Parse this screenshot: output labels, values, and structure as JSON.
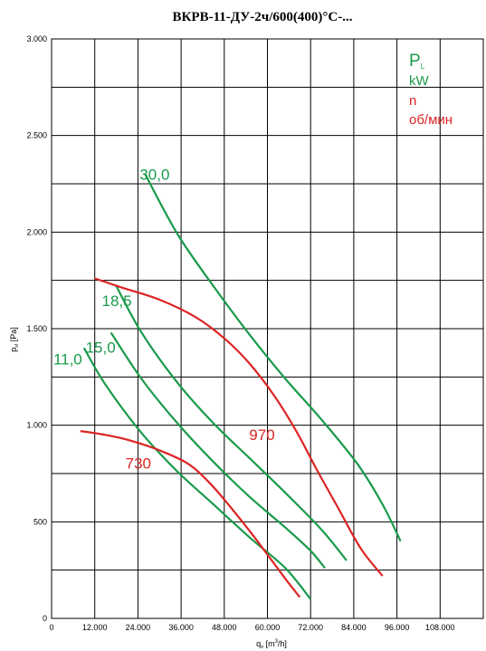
{
  "chart_data": {
    "type": "line",
    "title": "ВКРВ-11-ДУ-2ч/600(400)°С-...",
    "xlabel": "q",
    "xlabel_sub": "v",
    "xlabel_unit": " [m",
    "xlabel_unit_sup": "3",
    "xlabel_unit_end": "/h]",
    "ylabel": "p",
    "ylabel_sub": "sf",
    "ylabel_unit": " [Pa]",
    "xlim": [
      0,
      120000
    ],
    "ylim": [
      0,
      3000
    ],
    "x_ticks": [
      0,
      12000,
      24000,
      36000,
      48000,
      60000,
      72000,
      84000,
      96000,
      108000
    ],
    "x_tick_labels": [
      "0",
      "12.000",
      "24.000",
      "36.000",
      "48.000",
      "60.000",
      "72.000",
      "84.000",
      "96.000",
      "108.000"
    ],
    "y_ticks": [
      0,
      500,
      1000,
      1500,
      2000,
      2500,
      3000
    ],
    "y_tick_labels": [
      "0",
      "500",
      "1.000",
      "1.500",
      "2.000",
      "2.500",
      "3.000"
    ],
    "grid": true,
    "legend": {
      "position": "top-right",
      "power_symbol": "P",
      "power_sub": "L",
      "power_unit": "kW",
      "speed_symbol": "n",
      "speed_unit": "об/мин"
    },
    "power_series": [
      {
        "label": "30,0",
        "color": "#1a9a4a",
        "x": [
          26000,
          35000,
          45000,
          55000,
          65000,
          75000,
          85000,
          92000,
          97000
        ],
        "y": [
          2300,
          1990,
          1720,
          1470,
          1240,
          1030,
          800,
          590,
          400
        ]
      },
      {
        "label": "18,5",
        "color": "#1a9a4a",
        "x": [
          18000,
          25000,
          35000,
          45000,
          55000,
          65000,
          75000,
          82000
        ],
        "y": [
          1720,
          1480,
          1220,
          1010,
          830,
          650,
          460,
          300
        ]
      },
      {
        "label": "15,0",
        "color": "#1a9a4a",
        "x": [
          16500,
          25000,
          35000,
          45000,
          55000,
          65000,
          72000,
          76000
        ],
        "y": [
          1480,
          1240,
          1010,
          810,
          630,
          470,
          350,
          260
        ]
      },
      {
        "label": "11,0",
        "color": "#1a9a4a",
        "x": [
          9000,
          15000,
          25000,
          35000,
          45000,
          55000,
          65000,
          72000
        ],
        "y": [
          1400,
          1210,
          960,
          760,
          590,
          420,
          260,
          100
        ]
      }
    ],
    "speed_series": [
      {
        "label": "970",
        "color": "#dd2424",
        "x": [
          12000,
          20000,
          30000,
          40000,
          48000,
          55000,
          62000,
          68000,
          74000,
          80000,
          86000,
          92000
        ],
        "y": [
          1760,
          1710,
          1650,
          1560,
          1450,
          1320,
          1150,
          970,
          760,
          560,
          360,
          220
        ]
      },
      {
        "label": "730",
        "color": "#dd2424",
        "x": [
          8000,
          15000,
          22000,
          30000,
          38000,
          44000,
          50000,
          56000,
          62000,
          66000,
          69000
        ],
        "y": [
          970,
          950,
          920,
          870,
          800,
          700,
          570,
          430,
          280,
          180,
          110
        ]
      }
    ]
  }
}
